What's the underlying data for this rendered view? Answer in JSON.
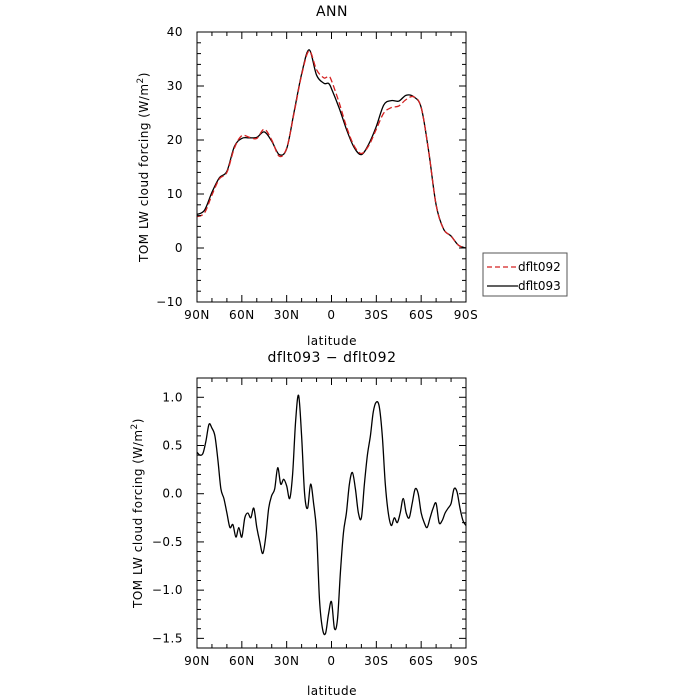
{
  "chart_data": [
    {
      "type": "line",
      "title": "ANN",
      "xlabel": "latitude",
      "ylabel": "TOM LW cloud forcing (W/m",
      "ylabel_sup": "2",
      "ylabel_tail": ")",
      "xlim": [
        90,
        -90
      ],
      "ylim": [
        -10,
        40
      ],
      "x_ticks": [
        90,
        60,
        30,
        0,
        -30,
        -60,
        -90
      ],
      "x_tick_labels": [
        "90N",
        "60N",
        "30N",
        "0",
        "30S",
        "60S",
        "90S"
      ],
      "y_ticks": [
        -10,
        0,
        10,
        20,
        30,
        40
      ],
      "y_tick_labels": [
        "−10",
        "0",
        "10",
        "20",
        "30",
        "40"
      ],
      "legend_position": "right",
      "series": [
        {
          "name": "dflt092",
          "color": "#d42020",
          "dash": true,
          "x": [
            90,
            85,
            80,
            75,
            70,
            65,
            60,
            55,
            50,
            45,
            40,
            35,
            30,
            25,
            20,
            15,
            10,
            5,
            2,
            0,
            -5,
            -10,
            -15,
            -20,
            -25,
            -30,
            -35,
            -40,
            -45,
            -50,
            -55,
            -60,
            -65,
            -70,
            -75,
            -80,
            -85,
            -90
          ],
          "y": [
            5.8,
            6.5,
            9.8,
            12.8,
            14.0,
            18.5,
            20.8,
            20.5,
            20.3,
            22.0,
            20.0,
            17.0,
            18.5,
            25.0,
            32.0,
            36.5,
            33.0,
            31.5,
            31.8,
            31.0,
            27.0,
            22.5,
            19.0,
            17.5,
            19.0,
            22.0,
            25.0,
            26.0,
            26.3,
            27.5,
            28.0,
            26.0,
            18.0,
            8.0,
            3.5,
            2.2,
            0.5,
            0.0
          ]
        },
        {
          "name": "dflt093",
          "color": "#000000",
          "dash": false,
          "x": [
            90,
            85,
            80,
            75,
            70,
            65,
            60,
            55,
            50,
            45,
            40,
            35,
            30,
            25,
            20,
            15,
            10,
            5,
            2,
            0,
            -5,
            -10,
            -15,
            -20,
            -25,
            -30,
            -35,
            -40,
            -45,
            -50,
            -55,
            -60,
            -65,
            -70,
            -75,
            -80,
            -85,
            -90
          ],
          "y": [
            6.2,
            7.0,
            10.3,
            13.0,
            14.2,
            18.8,
            20.3,
            20.4,
            20.5,
            21.5,
            19.8,
            17.3,
            18.4,
            25.2,
            32.2,
            36.7,
            32.0,
            30.5,
            30.5,
            29.5,
            26.0,
            22.0,
            18.7,
            17.3,
            19.3,
            22.5,
            26.5,
            27.3,
            27.2,
            28.3,
            28.0,
            26.0,
            18.0,
            8.0,
            3.5,
            2.2,
            0.5,
            0.0
          ]
        }
      ]
    },
    {
      "type": "line",
      "title": "dflt093 − dflt092",
      "xlabel": "latitude",
      "ylabel": "TOM LW cloud forcing (W/m",
      "ylabel_sup": "2",
      "ylabel_tail": ")",
      "xlim": [
        90,
        -90
      ],
      "ylim": [
        -1.6,
        1.2
      ],
      "x_ticks": [
        90,
        60,
        30,
        0,
        -30,
        -60,
        -90
      ],
      "x_tick_labels": [
        "90N",
        "60N",
        "30N",
        "0",
        "30S",
        "60S",
        "90S"
      ],
      "y_ticks": [
        -1.5,
        -1.0,
        -0.5,
        0.0,
        0.5,
        1.0
      ],
      "y_tick_labels": [
        "−1.5",
        "−1.0",
        "−0.5",
        "0.0",
        "0.5",
        "1.0"
      ],
      "series": [
        {
          "name": "",
          "color": "#000000",
          "dash": false,
          "x": [
            90,
            88,
            86,
            84,
            82,
            80,
            78,
            76,
            74,
            72,
            70,
            68,
            66,
            64,
            62,
            60,
            58,
            56,
            54,
            52,
            50,
            48,
            46,
            44,
            42,
            40,
            38,
            36,
            34,
            32,
            30,
            28,
            26,
            24,
            22,
            20,
            18,
            16,
            14,
            12,
            10,
            8,
            6,
            4,
            2,
            0,
            -2,
            -4,
            -6,
            -8,
            -10,
            -12,
            -14,
            -16,
            -18,
            -20,
            -22,
            -24,
            -26,
            -28,
            -30,
            -32,
            -34,
            -36,
            -38,
            -40,
            -42,
            -44,
            -46,
            -48,
            -50,
            -52,
            -54,
            -56,
            -58,
            -60,
            -62,
            -64,
            -66,
            -68,
            -70,
            -72,
            -74,
            -76,
            -78,
            -80,
            -82,
            -84,
            -86,
            -88,
            -90
          ],
          "y": [
            0.43,
            0.4,
            0.42,
            0.55,
            0.72,
            0.68,
            0.6,
            0.35,
            0.05,
            -0.05,
            -0.2,
            -0.35,
            -0.32,
            -0.45,
            -0.35,
            -0.45,
            -0.25,
            -0.2,
            -0.25,
            -0.15,
            -0.35,
            -0.5,
            -0.62,
            -0.45,
            -0.15,
            -0.02,
            0.05,
            0.27,
            0.1,
            0.15,
            0.08,
            -0.05,
            0.2,
            0.75,
            1.02,
            0.6,
            0.0,
            -0.15,
            0.1,
            -0.1,
            -0.4,
            -1.1,
            -1.4,
            -1.45,
            -1.25,
            -1.12,
            -1.4,
            -1.3,
            -0.8,
            -0.4,
            -0.2,
            0.1,
            0.22,
            0.05,
            -0.2,
            -0.25,
            0.1,
            0.4,
            0.6,
            0.85,
            0.95,
            0.9,
            0.6,
            0.1,
            -0.2,
            -0.33,
            -0.25,
            -0.3,
            -0.2,
            -0.05,
            -0.2,
            -0.25,
            -0.1,
            0.05,
            0.0,
            -0.2,
            -0.3,
            -0.35,
            -0.25,
            -0.15,
            -0.1,
            -0.3,
            -0.28,
            -0.2,
            -0.15,
            -0.1,
            0.05,
            0.02,
            -0.15,
            -0.28,
            -0.33
          ]
        }
      ]
    }
  ]
}
